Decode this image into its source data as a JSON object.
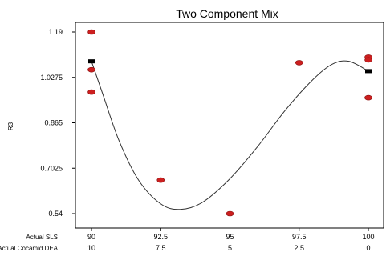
{
  "chart_data": {
    "type": "scatter",
    "title": "Two Component Mix",
    "ylabel": "R3",
    "xlabel": "",
    "ylim": [
      0.54,
      1.19
    ],
    "xlim": [
      90,
      100
    ],
    "yticks": [
      "1.19",
      "1.0275",
      "0.865",
      "0.7025",
      "0.54"
    ],
    "ytick_values": [
      1.19,
      1.0275,
      0.865,
      0.7025,
      0.54
    ],
    "x_rows": [
      {
        "label": "Actual SLS",
        "ticks": [
          "90",
          "92.5",
          "95",
          "97.5",
          "100"
        ]
      },
      {
        "label": "Actual Cocamid DEA",
        "ticks": [
          "10",
          "7.5",
          "5",
          "2.5",
          "0"
        ]
      }
    ],
    "xtick_values": [
      90,
      92.5,
      95,
      97.5,
      100
    ],
    "grid": false,
    "colors": {
      "points": "#cc1f1f",
      "curve": "#333333",
      "markers": "#000000"
    },
    "series": [
      {
        "kind": "points",
        "points": [
          {
            "x": 90,
            "y": 1.19
          },
          {
            "x": 90,
            "y": 1.055
          },
          {
            "x": 90,
            "y": 0.975
          },
          {
            "x": 92.5,
            "y": 0.66
          },
          {
            "x": 95,
            "y": 0.54
          },
          {
            "x": 97.5,
            "y": 1.08
          },
          {
            "x": 100,
            "y": 1.1
          },
          {
            "x": 100,
            "y": 1.09
          },
          {
            "x": 100,
            "y": 0.955
          }
        ]
      },
      {
        "kind": "fitted-curve",
        "points": [
          {
            "x": 90,
            "y": 1.085
          },
          {
            "x": 90.4,
            "y": 0.97
          },
          {
            "x": 91,
            "y": 0.8
          },
          {
            "x": 91.7,
            "y": 0.66
          },
          {
            "x": 92.5,
            "y": 0.575
          },
          {
            "x": 93.2,
            "y": 0.555
          },
          {
            "x": 94,
            "y": 0.58
          },
          {
            "x": 95,
            "y": 0.665
          },
          {
            "x": 96,
            "y": 0.78
          },
          {
            "x": 97,
            "y": 0.91
          },
          {
            "x": 98,
            "y": 1.02
          },
          {
            "x": 98.7,
            "y": 1.075
          },
          {
            "x": 99.3,
            "y": 1.085
          },
          {
            "x": 100,
            "y": 1.05
          }
        ]
      },
      {
        "kind": "design-markers",
        "points": [
          {
            "x": 90,
            "y": 1.085
          },
          {
            "x": 100,
            "y": 1.05
          }
        ]
      }
    ]
  }
}
